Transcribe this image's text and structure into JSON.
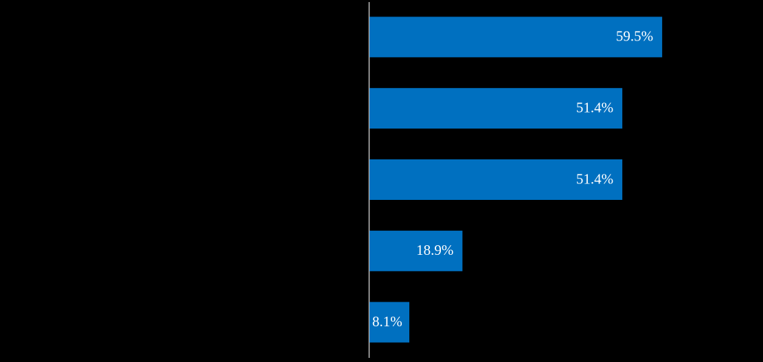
{
  "chart_data": {
    "type": "hbar",
    "categories": [
      null,
      null,
      null,
      null,
      null
    ],
    "values": [
      59.5,
      51.4,
      51.4,
      18.9,
      8.1
    ],
    "value_labels": [
      "59.5%",
      "51.4%",
      "51.4%",
      "18.9%",
      "8.1%"
    ],
    "color": "#0070c0",
    "xlim": [
      0,
      80
    ]
  }
}
